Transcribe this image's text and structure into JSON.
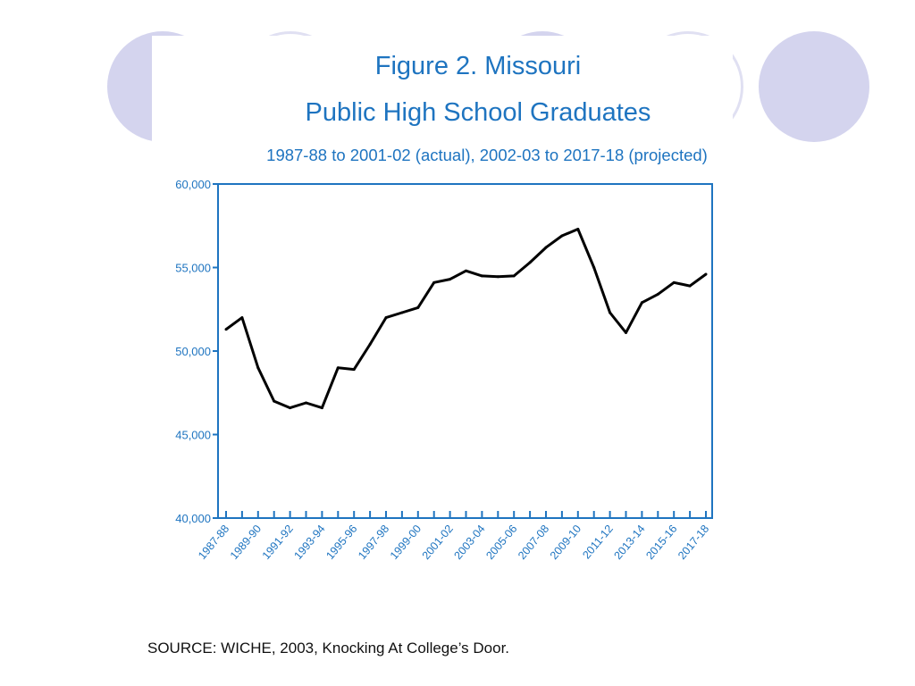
{
  "chart_data": {
    "type": "line",
    "title": "Figure 2.  Missouri",
    "subtitle_line": "Public High School Graduates",
    "subtitle": "1987-88 to 2001-02 (actual), 2002-03 to 2017-18 (projected)",
    "xlabel": "",
    "ylabel": "",
    "ylim": [
      40000,
      60000
    ],
    "yticks": [
      "40,000",
      "45,000",
      "50,000",
      "55,000",
      "60,000"
    ],
    "ytick_values": [
      40000,
      45000,
      50000,
      55000,
      60000
    ],
    "x_tick_labels": [
      "1987-88",
      "1989-90",
      "1991-92",
      "1993-94",
      "1995-96",
      "1997-98",
      "1999-00",
      "2001-02",
      "2003-04",
      "2005-06",
      "2007-08",
      "2009-10",
      "2011-12",
      "2013-14",
      "2015-16",
      "2017-18"
    ],
    "categories": [
      "1987-88",
      "1988-89",
      "1989-90",
      "1990-91",
      "1991-92",
      "1992-93",
      "1993-94",
      "1994-95",
      "1995-96",
      "1996-97",
      "1997-98",
      "1998-99",
      "1999-00",
      "2000-01",
      "2001-02",
      "2002-03",
      "2003-04",
      "2004-05",
      "2005-06",
      "2006-07",
      "2007-08",
      "2008-09",
      "2009-10",
      "2010-11",
      "2011-12",
      "2012-13",
      "2013-14",
      "2014-15",
      "2015-16",
      "2016-17",
      "2017-18"
    ],
    "values": [
      51300,
      52000,
      49000,
      47000,
      46600,
      46900,
      46600,
      49000,
      48900,
      50400,
      52000,
      52300,
      52600,
      54100,
      54300,
      54800,
      54500,
      54450,
      54500,
      55300,
      56200,
      56900,
      57300,
      55000,
      52300,
      51100,
      52900,
      53400,
      54100,
      53900,
      54600
    ],
    "grid": false,
    "line_color": "#000000",
    "axis_color": "#1e74c0"
  },
  "source": "SOURCE: WICHE, 2003, Knocking At College’s Door."
}
